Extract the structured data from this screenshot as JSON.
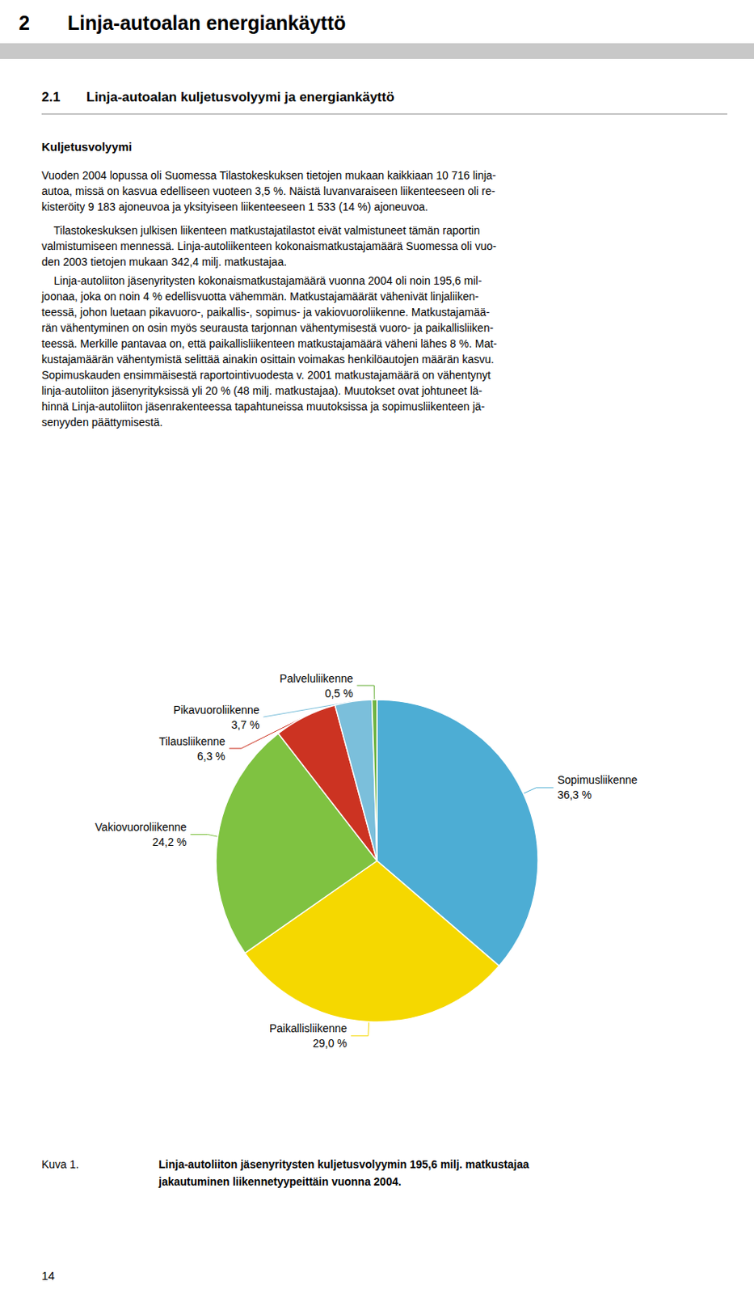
{
  "chart_data": {
    "type": "pie",
    "title": "Linja-autoliiton jäsenyritysten kuljetusvolyymin 195,6 milj. matkustajaa\njakautuminen liikennetyypeittäin vuonna 2004.",
    "categories": [
      "Sopimusliikenne",
      "Paikallisliikenne",
      "Vakiovuoroliikenne",
      "Tilausliikenne",
      "Pikavuoroliikenne",
      "Palveluliikenne"
    ],
    "values": [
      36.3,
      29.0,
      24.2,
      6.3,
      3.7,
      0.5
    ],
    "value_labels": [
      "36,3 %",
      "29,0 %",
      "24,2 %",
      "6,3 %",
      "3,7 %",
      "0,5 %"
    ],
    "data_labels": true,
    "colors": [
      "#4dadd4",
      "#f5d800",
      "#7fc241",
      "#cc3322",
      "#7bbfdb",
      "#6db33f"
    ],
    "annotations": [
      "2",
      "Linja-autoalan energiankäyttö",
      "2.1",
      "Linja-autoalan kuljetusvolyymi ja energiankäyttö",
      "Kuljetusvolyymi",
      "Vuoden 2004 lopussa oli Suomessa Tilastokeskuksen tietojen mukaan kaikkiaan 10 716 linja-\nautoa, missä on kasvua edelliseen vuoteen 3,5 %. Näistä luvanvaraiseen liikenteeseen oli re-\nkisteröity 9 183 ajoneuvoa ja yksityiseen liikenteeseen 1 533 (14 %) ajoneuvoa.",
      "    Tilastokeskuksen julkisen liikenteen matkustajatilastot eivät valmistuneet tämän raportin\nvalmistumiseen mennessä. Linja-autoliikenteen kokonaismatkustajamäärä Suomessa oli vuo-\nden 2003 tietojen mukaan 342,4 milj. matkustajaa.",
      "    Linja-autoliiton jäsenyritysten kokonaismatkustajamäärä vuonna 2004 oli noin 195,6 mil-\njoonaa, joka on noin 4 % edellisvuotta vähemmän. Matkustajamäärät vähenivät linjaliiken-\nteessä, johon luetaan pikavuoro-, paikallis-, sopimus- ja vakiovuoroliikenne. Matkustajamää-\nrän vähentyminen on osin myös seurausta tarjonnan vähentymisestä vuoro- ja paikallisliiken-\nteessä. Merkille pantavaa on, että paikallisliikenteen matkustajamäärä väheni lähes 8 %. Mat-\nkustajamäärän vähentymistä selittää ainakin osittain voimakas henkilöautojen määrän kasvu.\nSopimuskauden ensimmäisestä raportointivuodesta v. 2001 matkustajamäärä on vähentynyt\nlinja-autoliiton jäsenyrityksissä yli 20 % (48 milj. matkustajaa). Muutokset ovat johtuneet lä-\nhinnä Linja-autoliiton jäsenrakenteessa tapahtuneissa muutoksissa ja sopimusliikenteen jä-\nsenyyden päättymisestä.",
      "Kuva 1.",
      "14"
    ]
  }
}
